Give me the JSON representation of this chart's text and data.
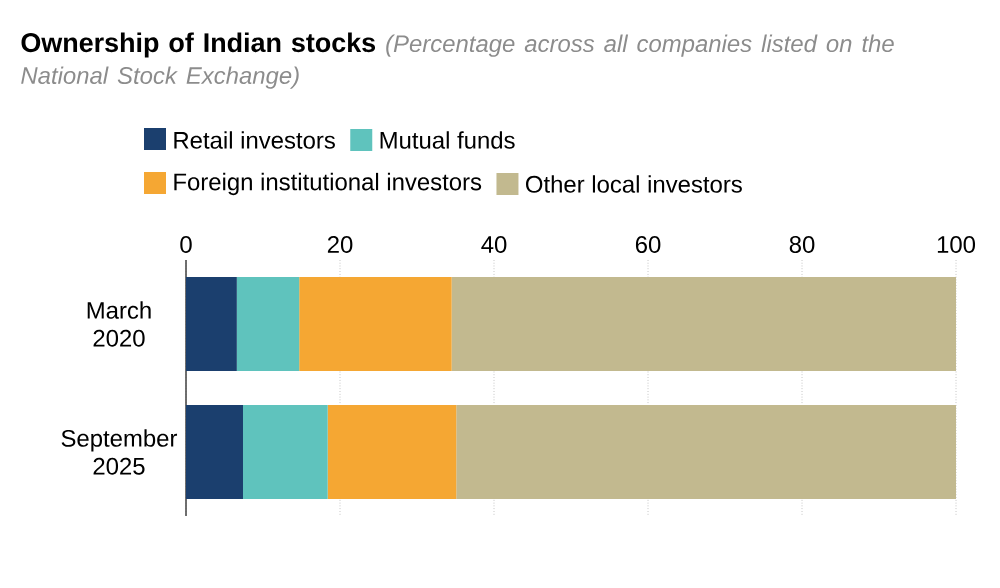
{
  "chart_data": {
    "type": "bar",
    "orientation": "horizontal",
    "stacked": true,
    "title": "Ownership of Indian stocks",
    "subtitle": "(Percentage across all companies listed on the National Stock Exchange)",
    "categories": [
      "March 2020",
      "September 2025"
    ],
    "series": [
      {
        "name": "Retail investors",
        "color": "#1b3f6e",
        "values": [
          6.6,
          7.4
        ]
      },
      {
        "name": "Mutual funds",
        "color": "#5fc3bd",
        "values": [
          8.1,
          11.0
        ]
      },
      {
        "name": "Foreign institutional investors",
        "color": "#f5a733",
        "values": [
          19.8,
          16.7
        ]
      },
      {
        "name": "Other local investors",
        "color": "#c2b98f",
        "values": [
          65.5,
          64.9
        ]
      }
    ],
    "xlim": [
      0,
      100
    ],
    "xticks": [
      0,
      20,
      40,
      60,
      80,
      100
    ],
    "grid": "x",
    "legend": "top"
  }
}
